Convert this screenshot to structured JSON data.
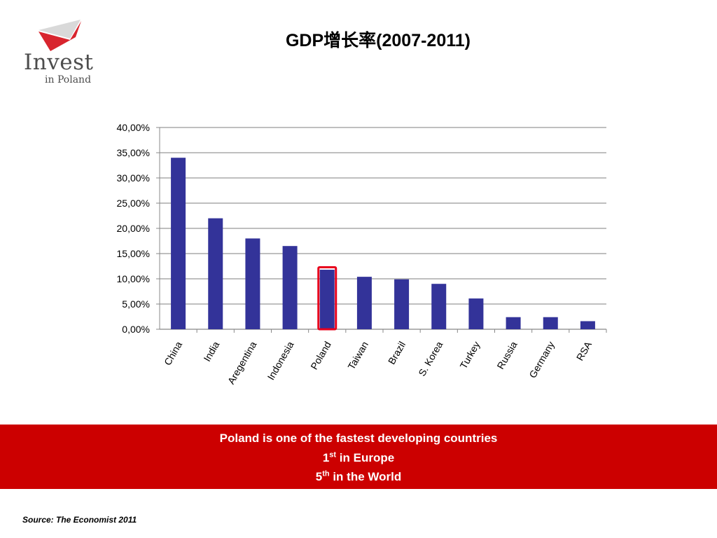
{
  "logo": {
    "word": "Invest",
    "sub": "in Poland",
    "colors": {
      "red": "#d8252e",
      "gray": "#d9d9d9",
      "text": "#4d4d4d"
    }
  },
  "title": "GDP增长率(2007-2011)",
  "chart_data": {
    "type": "bar",
    "categories": [
      "China",
      "India",
      "Aregentina",
      "Indonesia",
      "Poland",
      "Taiwan",
      "Brazil",
      "S. Korea",
      "Turkey",
      "Russia",
      "Germany",
      "RSA"
    ],
    "values": [
      34.0,
      22.0,
      18.0,
      16.5,
      11.8,
      10.4,
      9.9,
      9.0,
      6.1,
      2.4,
      2.4,
      1.6
    ],
    "ylim": [
      0,
      40
    ],
    "yticks": [
      "0,00%",
      "5,00%",
      "10,00%",
      "15,00%",
      "20,00%",
      "25,00%",
      "30,00%",
      "35,00%",
      "40,00%"
    ],
    "grid": true,
    "highlight": "Poland",
    "colors": {
      "bar": "#333399",
      "highlight": "#e8001c",
      "grid": "#999999"
    }
  },
  "banner": {
    "line1": "Poland is one of the fastest developing countries",
    "line2_num": "1",
    "line2_sup": "st",
    "line2_text": " in Europe",
    "line3_num": "5",
    "line3_sup": "th",
    "line3_text": " in the World",
    "color": "#cc0000"
  },
  "source": "Source: The Economist 2011"
}
